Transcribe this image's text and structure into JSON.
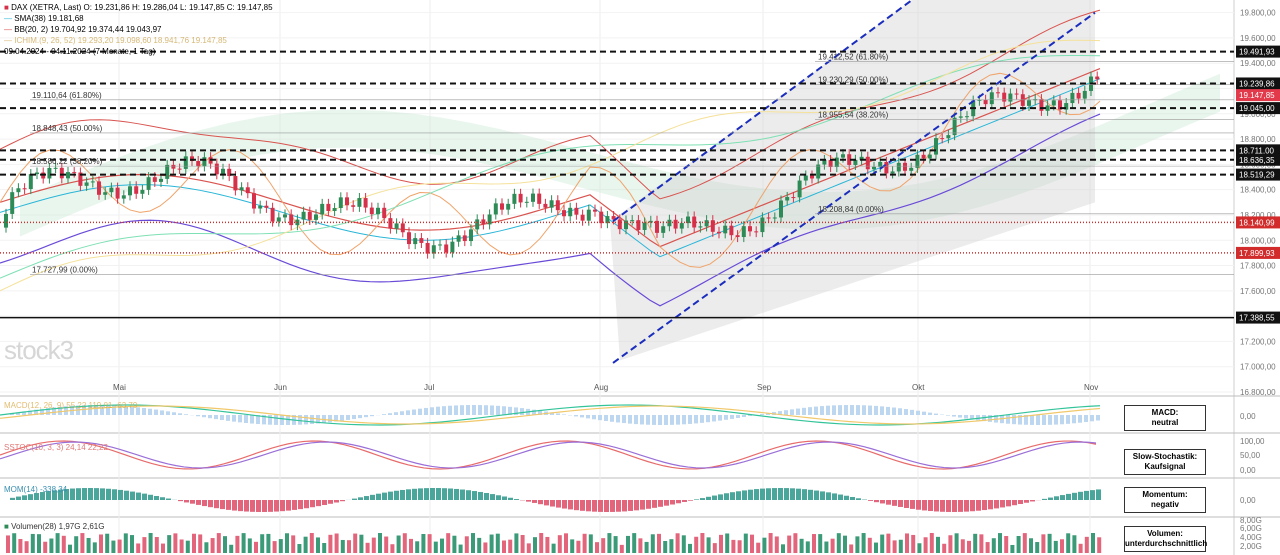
{
  "legend": {
    "dax": "DAX (XETRA, Last)  O: 19.231,86  H: 19.286,04  L: 19.147,85  C: 19.147,85",
    "sma": "SMA(38)  19.181,68",
    "bb": "BB(20, 2)  19.704,92  19.374,44  19.043,97",
    "ichimoku": "ICHIM.(9, 26, 52)  19.293,20  19.098,60  18.941,76  19.147,85",
    "period": "09.04.2024 - 04.11.2024  (7 Monate, 1 Tag)",
    "macd": "MACD(12, 26, 9)  55,22  119,01  -63,79",
    "sstoch": "SSTOC(10, 3, 3)  24,14  22,22",
    "momentum": "MOM(14)  -338,34",
    "volume": "Volumen(28)  1,97G  2,61G"
  },
  "watermark": "stock3",
  "boxes": {
    "macd": [
      "MACD:",
      "neutral"
    ],
    "stoch": [
      "Slow-Stochastik:",
      "Kaufsignal"
    ],
    "mom": [
      "Momentum:",
      "negativ"
    ],
    "vol": [
      "Volumen:",
      "unterdurchschnittlich"
    ]
  },
  "colors": {
    "up": "#2e8b57",
    "down": "#d6314a",
    "sma": "#29b6d8",
    "bb": "#d9534f",
    "channel": "#1a2dbd"
  },
  "chart_data": {
    "type": "candlestick",
    "title": "DAX (XETRA, Last)",
    "x_months": [
      "Mai",
      "Jun",
      "Jul",
      "Aug",
      "Sep",
      "Okt",
      "Nov"
    ],
    "y_ticks": [
      "19.800,00",
      "19.600,00",
      "19.400,00",
      "19.200,00",
      "19.000,00",
      "18.800,00",
      "18.600,00",
      "18.400,00",
      "18.200,00",
      "18.000,00",
      "17.800,00",
      "17.600,00",
      "17.400,00",
      "17.200,00",
      "17.000,00",
      "16.800,00"
    ],
    "ylim": [
      16800,
      19900
    ],
    "levels": [
      {
        "value": 19491.93,
        "label": "19.491,93",
        "style": "dashed"
      },
      {
        "value": 19239.86,
        "label": "19.239,86",
        "style": "dashed"
      },
      {
        "value": 19045.0,
        "label": "19.045,00",
        "style": "dashed"
      },
      {
        "value": 18711.0,
        "label": "18.711,00",
        "style": "dashed"
      },
      {
        "value": 18636.35,
        "label": "18.636,35",
        "style": "dashed"
      },
      {
        "value": 18519.29,
        "label": "18.519,29",
        "style": "dashed"
      },
      {
        "value": 18140.99,
        "label": "18.140,99",
        "style": "dotted-red"
      },
      {
        "value": 17899.93,
        "label": "17.899,93",
        "style": "dotted-red"
      },
      {
        "value": 17388.55,
        "label": "17.388,55",
        "style": "solid"
      }
    ],
    "current_price": {
      "value": 19147.85,
      "label": "19.147,85"
    },
    "fib_left": [
      {
        "value": 19110.64,
        "label": "19.110,64 (61.80%)"
      },
      {
        "value": 18848.43,
        "label": "18.848,43 (50.00%)"
      },
      {
        "value": 18586.22,
        "label": "18.586,22 (38.20%)"
      },
      {
        "value": 17727.99,
        "label": "17.727,99 (0.00%)"
      }
    ],
    "fib_right": [
      {
        "value": 19412.52,
        "label": "19.412,52 (61.80%)"
      },
      {
        "value": 19230.29,
        "label": "19.230,29 (50.00%)"
      },
      {
        "value": 18955.54,
        "label": "18.955,54 (38.20%)"
      },
      {
        "value": 18208.84,
        "label": "18.208,84 (0.00%)"
      }
    ],
    "indicator_ticks": {
      "macd": [
        "0,00"
      ],
      "stoch": [
        "100,00",
        "50,00",
        "0,00"
      ],
      "mom": [
        "0,00"
      ],
      "vol": [
        "8,00G",
        "6,00G",
        "4,00G",
        "2,00G"
      ]
    }
  }
}
